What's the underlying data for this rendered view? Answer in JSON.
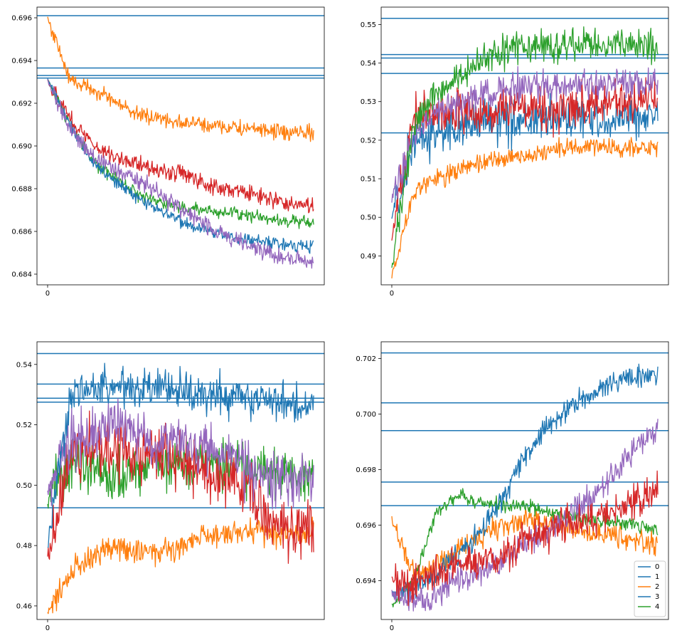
{
  "chart_data": [
    {
      "type": "line",
      "ylim": [
        0.6835,
        0.6965
      ],
      "xlim": [
        -0.04,
        1.04
      ],
      "yticks": [
        "0.696",
        "0.694",
        "0.692",
        "0.690",
        "0.688",
        "0.686",
        "0.684"
      ],
      "xticks": [
        "0"
      ],
      "hlines": [
        0.6961,
        0.69365,
        0.6933,
        0.69318
      ],
      "series": [
        {
          "color": "#ff7f0e",
          "noise": 0.00022,
          "values": [
            0.696,
            0.6931,
            0.6927,
            0.6921,
            0.6915,
            0.6913,
            0.6911,
            0.691,
            0.6909,
            0.6908,
            0.6907,
            0.6906,
            0.6906
          ]
        },
        {
          "color": "#d62728",
          "noise": 0.00024,
          "values": [
            0.6931,
            0.6913,
            0.6901,
            0.6895,
            0.6892,
            0.6889,
            0.6887,
            0.6883,
            0.688,
            0.6878,
            0.6875,
            0.6873,
            0.6872
          ]
        },
        {
          "color": "#2ca02c",
          "noise": 0.00018,
          "values": [
            0.6931,
            0.691,
            0.6893,
            0.6885,
            0.6878,
            0.6874,
            0.6871,
            0.687,
            0.6869,
            0.6868,
            0.6866,
            0.6865,
            0.6864
          ]
        },
        {
          "color": "#1f77b4",
          "noise": 0.00018,
          "values": [
            0.6931,
            0.691,
            0.6893,
            0.6884,
            0.6876,
            0.687,
            0.6865,
            0.6861,
            0.6858,
            0.6856,
            0.6855,
            0.6854,
            0.6853
          ]
        },
        {
          "color": "#9467bd",
          "noise": 0.00024,
          "values": [
            0.6931,
            0.6908,
            0.6895,
            0.6889,
            0.6884,
            0.6878,
            0.6871,
            0.6864,
            0.6858,
            0.6854,
            0.685,
            0.6847,
            0.6845
          ]
        }
      ]
    },
    {
      "type": "line",
      "ylim": [
        0.4825,
        0.5545
      ],
      "xlim": [
        -0.04,
        1.04
      ],
      "yticks": [
        "0.55",
        "0.54",
        "0.53",
        "0.52",
        "0.51",
        "0.50",
        "0.49"
      ],
      "xticks": [
        "0"
      ],
      "hlines": [
        0.5516,
        0.5422,
        0.5413,
        0.5373,
        0.5219
      ],
      "series": [
        {
          "color": "#ff7f0e",
          "noise": 0.0015,
          "values": [
            0.485,
            0.507,
            0.51,
            0.512,
            0.514,
            0.515,
            0.516,
            0.517,
            0.518,
            0.518,
            0.518,
            0.518,
            0.518
          ]
        },
        {
          "color": "#1f77b4",
          "noise": 0.0035,
          "values": [
            0.5,
            0.52,
            0.522,
            0.523,
            0.524,
            0.525,
            0.525,
            0.525,
            0.526,
            0.526,
            0.526,
            0.526,
            0.526
          ]
        },
        {
          "color": "#d62728",
          "noise": 0.0035,
          "values": [
            0.495,
            0.526,
            0.527,
            0.527,
            0.527,
            0.528,
            0.528,
            0.528,
            0.529,
            0.529,
            0.53,
            0.53,
            0.531
          ]
        },
        {
          "color": "#9467bd",
          "noise": 0.0025,
          "values": [
            0.505,
            0.522,
            0.527,
            0.53,
            0.532,
            0.533,
            0.534,
            0.534,
            0.534,
            0.534,
            0.535,
            0.535,
            0.535
          ]
        },
        {
          "color": "#2ca02c",
          "noise": 0.0025,
          "values": [
            0.487,
            0.525,
            0.532,
            0.536,
            0.541,
            0.543,
            0.544,
            0.544,
            0.545,
            0.545,
            0.545,
            0.545,
            0.545
          ]
        }
      ]
    },
    {
      "type": "line",
      "ylim": [
        0.4555,
        0.5475
      ],
      "xlim": [
        -0.04,
        1.04
      ],
      "yticks": [
        "0.54",
        "0.52",
        "0.50",
        "0.48",
        "0.46"
      ],
      "xticks": [
        "0"
      ],
      "hlines": [
        0.5436,
        0.5335,
        0.5288,
        0.5275,
        0.4925
      ],
      "series": [
        {
          "color": "#ff7f0e",
          "noise": 0.0025,
          "values": [
            0.458,
            0.47,
            0.477,
            0.48,
            0.478,
            0.478,
            0.48,
            0.483,
            0.484,
            0.485,
            0.484,
            0.484,
            0.484
          ]
        },
        {
          "color": "#2ca02c",
          "noise": 0.0055,
          "values": [
            0.495,
            0.508,
            0.505,
            0.503,
            0.505,
            0.507,
            0.507,
            0.508,
            0.507,
            0.506,
            0.505,
            0.503,
            0.503
          ]
        },
        {
          "color": "#d62728",
          "noise": 0.006,
          "values": [
            0.475,
            0.51,
            0.512,
            0.512,
            0.511,
            0.511,
            0.51,
            0.505,
            0.502,
            0.5,
            0.488,
            0.486,
            0.485
          ]
        },
        {
          "color": "#9467bd",
          "noise": 0.0055,
          "values": [
            0.498,
            0.515,
            0.518,
            0.52,
            0.518,
            0.514,
            0.513,
            0.512,
            0.51,
            0.505,
            0.503,
            0.502,
            0.503
          ]
        },
        {
          "color": "#1f77b4",
          "noise": 0.004,
          "values": [
            0.48,
            0.53,
            0.531,
            0.532,
            0.532,
            0.532,
            0.531,
            0.53,
            0.53,
            0.529,
            0.528,
            0.527,
            0.526
          ]
        }
      ]
    },
    {
      "type": "line",
      "ylim": [
        0.6926,
        0.7026
      ],
      "xlim": [
        -0.04,
        1.04
      ],
      "yticks": [
        "0.702",
        "0.700",
        "0.698",
        "0.696",
        "0.694"
      ],
      "xticks": [
        "0"
      ],
      "hlines": [
        0.7022,
        0.7004,
        0.6994,
        0.69755,
        0.6967
      ],
      "legend": {
        "position": "lower right",
        "labels": [
          "0",
          "1",
          "2",
          "3",
          "4"
        ],
        "colors": [
          "#1f77b4",
          "#1f77b4",
          "#ff7f0e",
          "#1f77b4",
          "#2ca02c"
        ]
      },
      "series": [
        {
          "color": "#ff7f0e",
          "noise": 0.00025,
          "values": [
            0.6962,
            0.6941,
            0.6945,
            0.6952,
            0.6956,
            0.696,
            0.6962,
            0.6961,
            0.6959,
            0.6957,
            0.6956,
            0.6954,
            0.6953
          ]
        },
        {
          "color": "#2ca02c",
          "noise": 0.00015,
          "values": [
            0.6931,
            0.694,
            0.6965,
            0.6971,
            0.6968,
            0.6967,
            0.6967,
            0.6965,
            0.6963,
            0.6962,
            0.6961,
            0.696,
            0.6958
          ]
        },
        {
          "color": "#1f77b4",
          "noise": 0.00025,
          "values": [
            0.6935,
            0.6937,
            0.6943,
            0.695,
            0.6958,
            0.697,
            0.6985,
            0.6995,
            0.7002,
            0.7007,
            0.7011,
            0.7014,
            0.7015
          ]
        },
        {
          "color": "#9467bd",
          "noise": 0.0003,
          "values": [
            0.6935,
            0.6932,
            0.6935,
            0.694,
            0.6943,
            0.6947,
            0.6953,
            0.6958,
            0.6963,
            0.697,
            0.6978,
            0.6988,
            0.6995
          ]
        },
        {
          "color": "#d62728",
          "noise": 0.0004,
          "values": [
            0.694,
            0.6938,
            0.6942,
            0.6946,
            0.6948,
            0.695,
            0.6954,
            0.6958,
            0.6961,
            0.6963,
            0.6965,
            0.6968,
            0.6972
          ]
        }
      ]
    }
  ]
}
